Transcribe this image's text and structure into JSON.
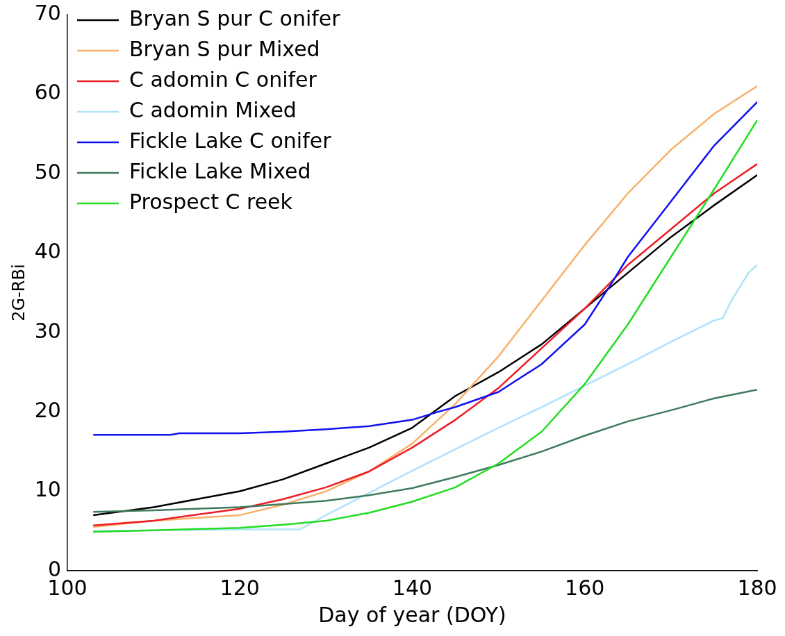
{
  "chart_data": {
    "type": "line",
    "xlabel": "Day of year (DOY)",
    "ylabel": "2G-RBi",
    "xlim": [
      100,
      180
    ],
    "xticks": [
      100,
      120,
      140,
      160,
      180
    ],
    "ylim": [
      0,
      70
    ],
    "yticks": [
      0,
      10,
      20,
      30,
      40,
      50,
      60,
      70
    ],
    "grid": false,
    "legend": "top left",
    "marker": "none",
    "line_style": "solid",
    "series": [
      {
        "name": "Bryan S pur C onifer",
        "color": "#000000",
        "x": [
          103,
          110,
          115,
          120,
          125,
          130,
          135,
          140,
          145,
          150,
          155,
          160,
          165,
          170,
          175,
          180
        ],
        "values": [
          7,
          8,
          9,
          10,
          11.5,
          13.5,
          15.5,
          18,
          22,
          25,
          28.5,
          33,
          37.5,
          42,
          46,
          49.8
        ]
      },
      {
        "name": "Bryan S pur Mixed",
        "color": "#f8b068",
        "x": [
          103,
          110,
          120,
          125,
          130,
          135,
          140,
          145,
          150,
          155,
          160,
          165,
          170,
          175,
          180
        ],
        "values": [
          5.5,
          6.3,
          7,
          8.3,
          10,
          12.5,
          16,
          21,
          27,
          34,
          41,
          47.5,
          53,
          57.5,
          61
        ]
      },
      {
        "name": "C adomin C onifer",
        "color": "#ee1c24",
        "x": [
          103,
          110,
          120,
          125,
          130,
          135,
          140,
          145,
          150,
          155,
          160,
          165,
          170,
          175,
          180
        ],
        "values": [
          5.7,
          6.3,
          7.8,
          9,
          10.5,
          12.5,
          15.5,
          19,
          23,
          28,
          33,
          38.5,
          43,
          47.5,
          51.2
        ]
      },
      {
        "name": "C adomin Mixed",
        "color": "#aee3f8",
        "x": [
          103,
          120,
          127,
          130,
          135,
          140,
          145,
          150,
          155,
          160,
          165,
          170,
          175,
          176,
          177,
          179,
          180
        ],
        "values": [
          5,
          5.2,
          5.2,
          7,
          9.8,
          12.6,
          15.3,
          18,
          20.6,
          23.3,
          26,
          28.8,
          31.5,
          31.8,
          34,
          37.5,
          38.5
        ]
      },
      {
        "name": "Fickle Lake C onifer",
        "color": "#1010f0",
        "x": [
          103,
          112,
          113,
          120,
          125,
          130,
          135,
          140,
          143,
          145,
          150,
          155,
          160,
          163,
          165,
          170,
          175,
          180
        ],
        "values": [
          17.1,
          17.1,
          17.3,
          17.3,
          17.5,
          17.8,
          18.2,
          19,
          20,
          20.6,
          22.5,
          26,
          31,
          36,
          39.5,
          46.5,
          53.5,
          59
        ]
      },
      {
        "name": "Fickle Lake Mixed",
        "color": "#3f7a5c",
        "x": [
          103,
          110,
          120,
          125,
          130,
          135,
          140,
          145,
          150,
          155,
          160,
          165,
          170,
          175,
          180
        ],
        "values": [
          7.4,
          7.6,
          8,
          8.4,
          8.8,
          9.5,
          10.4,
          11.8,
          13.3,
          15,
          17,
          18.8,
          20.2,
          21.7,
          22.8
        ]
      },
      {
        "name": "Prospect C reek",
        "color": "#22dd22",
        "x": [
          103,
          110,
          120,
          125,
          130,
          135,
          140,
          145,
          150,
          155,
          160,
          165,
          170,
          175,
          180
        ],
        "values": [
          4.9,
          5.1,
          5.4,
          5.8,
          6.3,
          7.3,
          8.7,
          10.5,
          13.5,
          17.5,
          23.5,
          31,
          39.5,
          48,
          56.7
        ]
      }
    ]
  }
}
